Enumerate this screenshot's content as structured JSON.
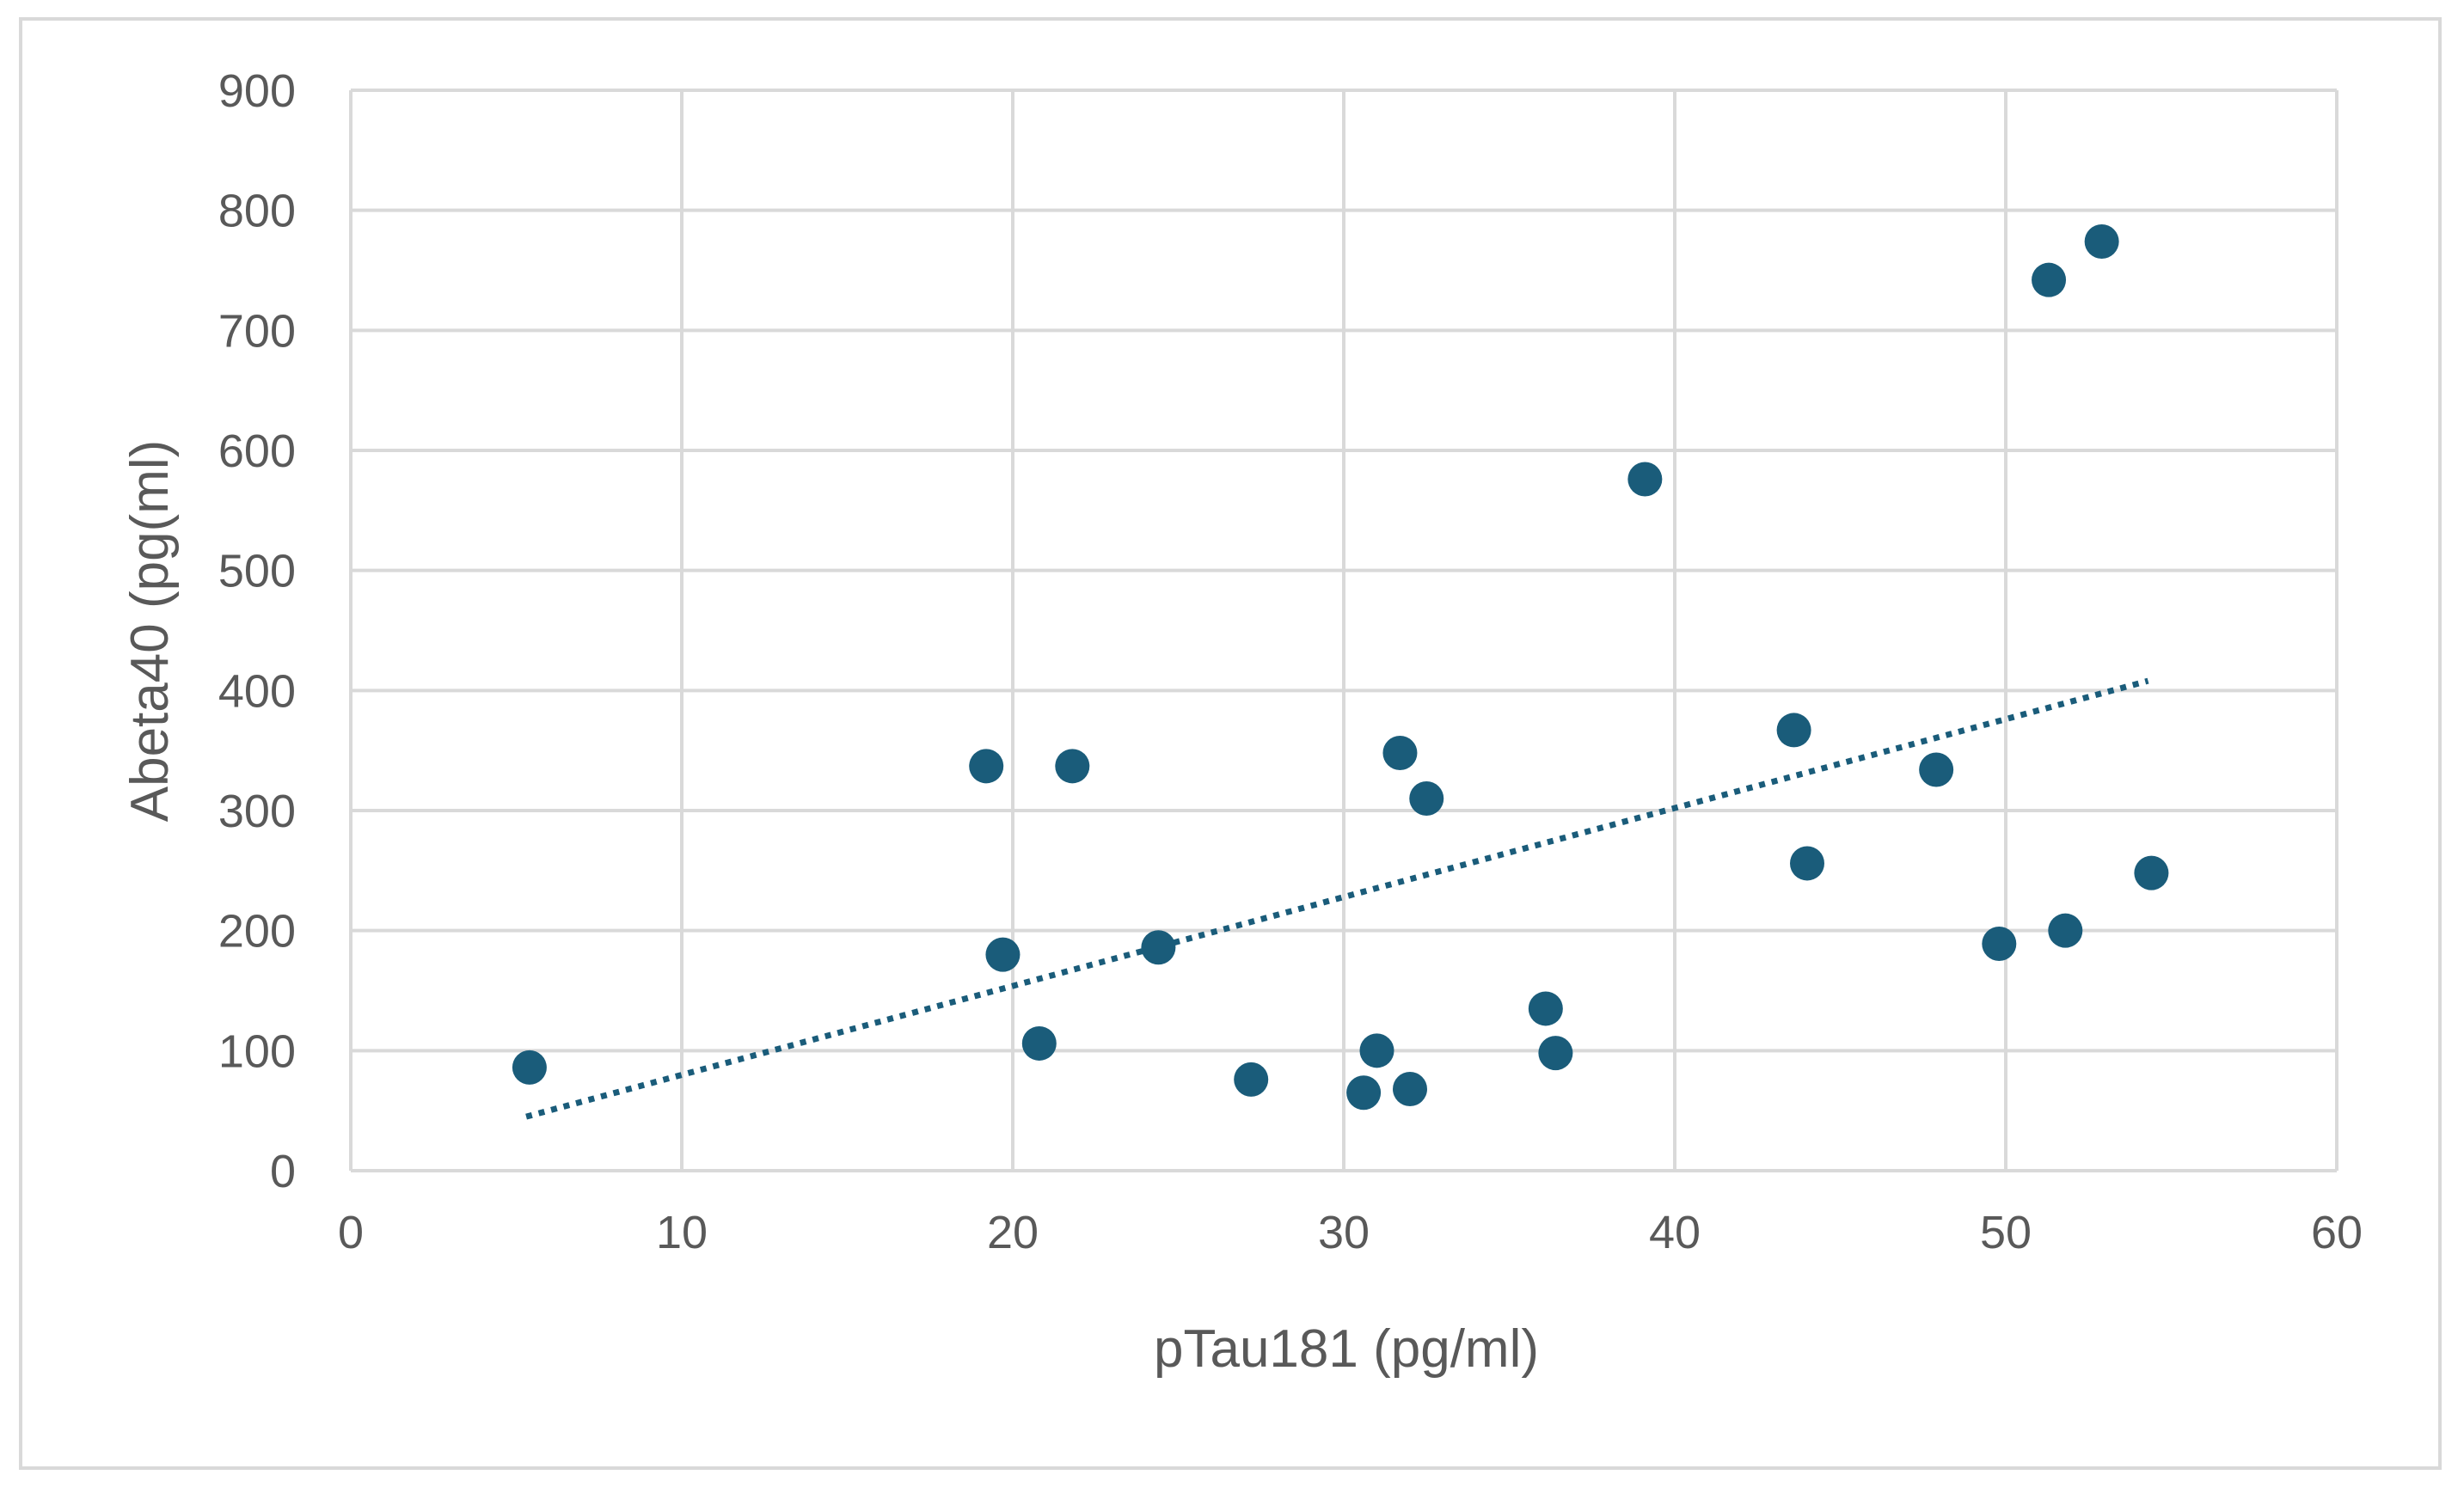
{
  "chart_data": {
    "type": "scatter",
    "title": "",
    "xlabel": "pTau181 (pg/ml)",
    "ylabel": "Abeta40 (pg(ml)",
    "xlim": [
      0,
      60
    ],
    "ylim": [
      0,
      900
    ],
    "x_ticks": [
      "0",
      "10",
      "20",
      "30",
      "40",
      "50",
      "60"
    ],
    "y_ticks": [
      "0",
      "100",
      "200",
      "300",
      "400",
      "500",
      "600",
      "700",
      "800",
      "900"
    ],
    "grid": true,
    "legend": "none",
    "marker_color": "#1a5c7a",
    "trendline": {
      "style": "dotted",
      "x": [
        5.3,
        54.3
      ],
      "y": [
        45,
        408
      ]
    },
    "points": [
      {
        "x": 5.4,
        "y": 86
      },
      {
        "x": 19.2,
        "y": 337
      },
      {
        "x": 19.7,
        "y": 180
      },
      {
        "x": 20.8,
        "y": 106
      },
      {
        "x": 21.8,
        "y": 337
      },
      {
        "x": 24.4,
        "y": 186
      },
      {
        "x": 27.2,
        "y": 76
      },
      {
        "x": 30.6,
        "y": 65
      },
      {
        "x": 31.0,
        "y": 100
      },
      {
        "x": 31.7,
        "y": 348
      },
      {
        "x": 32.0,
        "y": 68
      },
      {
        "x": 32.5,
        "y": 310
      },
      {
        "x": 36.1,
        "y": 135
      },
      {
        "x": 36.4,
        "y": 98
      },
      {
        "x": 39.1,
        "y": 576
      },
      {
        "x": 43.6,
        "y": 367
      },
      {
        "x": 44.0,
        "y": 256
      },
      {
        "x": 47.9,
        "y": 334
      },
      {
        "x": 49.8,
        "y": 189
      },
      {
        "x": 51.3,
        "y": 742
      },
      {
        "x": 51.8,
        "y": 200
      },
      {
        "x": 52.9,
        "y": 774
      },
      {
        "x": 54.4,
        "y": 248
      }
    ]
  }
}
